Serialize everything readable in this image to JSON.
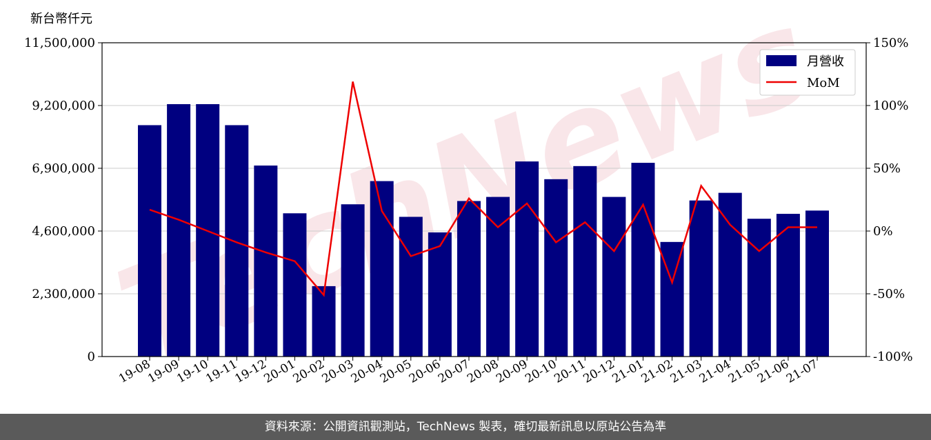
{
  "watermark": "TechNews",
  "footer": {
    "source_text": "資料來源：公開資訊觀測站，TechNews 製表，確切最新訊息以原站公告為準"
  },
  "chart_data": {
    "type": "bar",
    "unit_label": "新台幣仟元",
    "categories": [
      "19-08",
      "19-09",
      "19-10",
      "19-11",
      "19-12",
      "20-01",
      "20-02",
      "20-03",
      "20-04",
      "20-05",
      "20-06",
      "20-07",
      "20-08",
      "20-09",
      "20-10",
      "20-11",
      "20-12",
      "21-01",
      "21-02",
      "21-03",
      "21-04",
      "21-05",
      "21-06",
      "21-07"
    ],
    "series": [
      {
        "name": "月營收",
        "axis": "left",
        "type": "bar",
        "color": "#000080",
        "values": [
          8480000,
          9250000,
          9250000,
          8480000,
          7000000,
          5250000,
          2580000,
          5580000,
          6430000,
          5120000,
          4550000,
          5700000,
          5850000,
          7150000,
          6500000,
          6980000,
          5850000,
          7100000,
          4200000,
          5720000,
          6000000,
          5050000,
          5230000,
          5350000
        ]
      },
      {
        "name": "MoM",
        "axis": "right",
        "type": "line",
        "color": "#ee0000",
        "values": [
          17,
          9,
          0,
          -9,
          -17,
          -24,
          -51,
          119,
          16,
          -20,
          -12,
          26,
          3,
          22,
          -9,
          7,
          -16,
          21,
          -41,
          36,
          5,
          -16,
          3,
          3
        ]
      }
    ],
    "y_left": {
      "lim": [
        0,
        11500000
      ],
      "ticks": [
        0,
        2300000,
        4600000,
        6900000,
        9200000,
        11500000
      ],
      "tick_labels": [
        "0",
        "2,300,000",
        "4,600,000",
        "6,900,000",
        "9,200,000",
        "11,500,000"
      ]
    },
    "y_right": {
      "lim": [
        -100,
        150
      ],
      "ticks": [
        -100,
        -50,
        0,
        50,
        100,
        150
      ],
      "tick_labels": [
        "-100%",
        "-50%",
        "0%",
        "50%",
        "100%",
        "150%"
      ]
    },
    "grid": true,
    "legend_position": "top-right"
  }
}
